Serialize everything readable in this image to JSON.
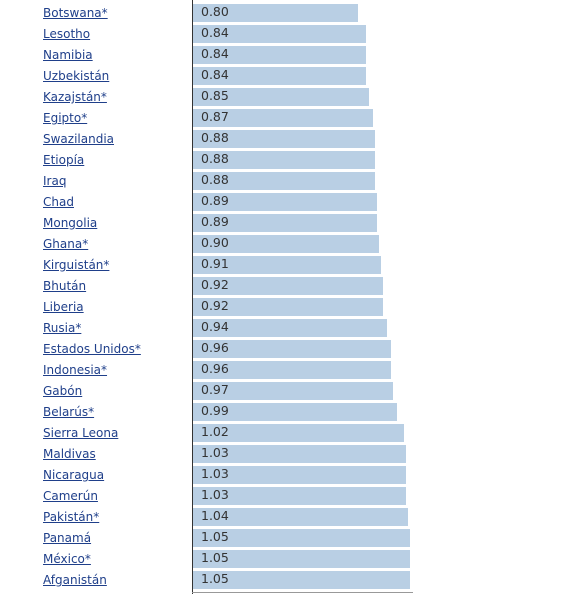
{
  "chart_data": {
    "type": "bar",
    "orientation": "horizontal",
    "color": "#b9cfe4",
    "categories": [
      "Botswana*",
      "Lesotho",
      "Namibia",
      "Uzbekistán",
      "Kazajstán*",
      "Egipto*",
      "Swazilandia",
      "Etiopía",
      "Iraq",
      "Chad",
      "Mongolia",
      "Ghana*",
      "Kirguistán*",
      "Bhután",
      "Liberia",
      "Rusia*",
      "Estados Unidos*",
      "Indonesia*",
      "Gabón",
      "Belarús*",
      "Sierra Leona",
      "Maldivas",
      "Nicaragua",
      "Camerún",
      "Pakistán*",
      "Panamá",
      "México*",
      "Afganistán"
    ],
    "values": [
      0.8,
      0.84,
      0.84,
      0.84,
      0.85,
      0.87,
      0.88,
      0.88,
      0.88,
      0.89,
      0.89,
      0.9,
      0.91,
      0.92,
      0.92,
      0.94,
      0.96,
      0.96,
      0.97,
      0.99,
      1.02,
      1.03,
      1.03,
      1.03,
      1.04,
      1.05,
      1.05,
      1.05
    ],
    "value_labels": [
      "0.80",
      "0.84",
      "0.84",
      "0.84",
      "0.85",
      "0.87",
      "0.88",
      "0.88",
      "0.88",
      "0.89",
      "0.89",
      "0.90",
      "0.91",
      "0.92",
      "0.92",
      "0.94",
      "0.96",
      "0.96",
      "0.97",
      "0.99",
      "1.02",
      "1.03",
      "1.03",
      "1.03",
      "1.04",
      "1.05",
      "1.05",
      "1.05"
    ]
  }
}
